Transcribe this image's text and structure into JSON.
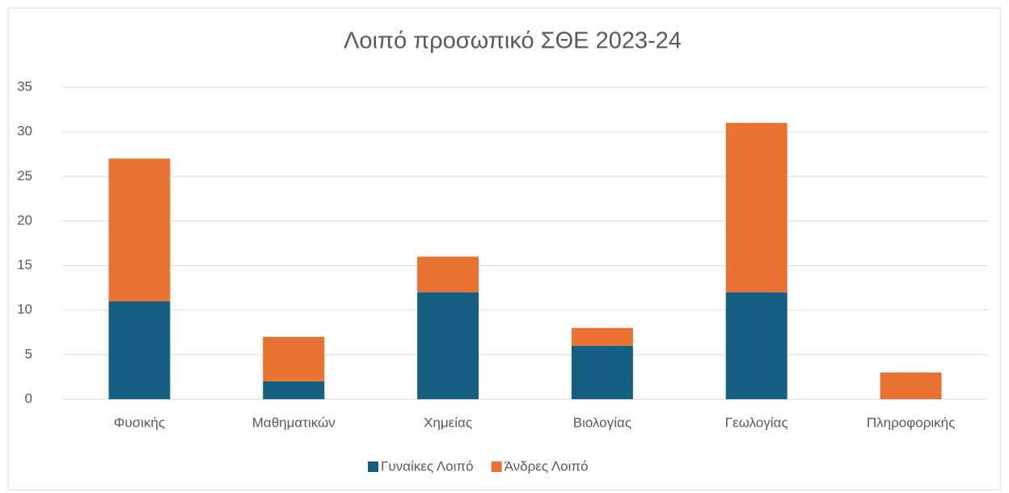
{
  "chart_data": {
    "type": "stacked_bar",
    "title": "Λοιπό προσωπικό ΣΘΕ 2023-24",
    "categories": [
      "Φυσικής",
      "Μαθηματικών",
      "Χημείας",
      "Βιολογίας",
      "Γεωλογίας",
      "Πληροφορικής"
    ],
    "series": [
      {
        "name": "Γυναίκες Λοιπό",
        "color": "#156082",
        "values": [
          11,
          2,
          12,
          6,
          12,
          0
        ]
      },
      {
        "name": "Άνδρες Λοιπό",
        "color": "#e97132",
        "values": [
          16,
          5,
          4,
          2,
          19,
          3
        ]
      }
    ],
    "ylim": [
      0,
      35
    ],
    "yticks": [
      0,
      5,
      10,
      15,
      20,
      25,
      30,
      35
    ],
    "grid": true,
    "legend": "bottom"
  }
}
